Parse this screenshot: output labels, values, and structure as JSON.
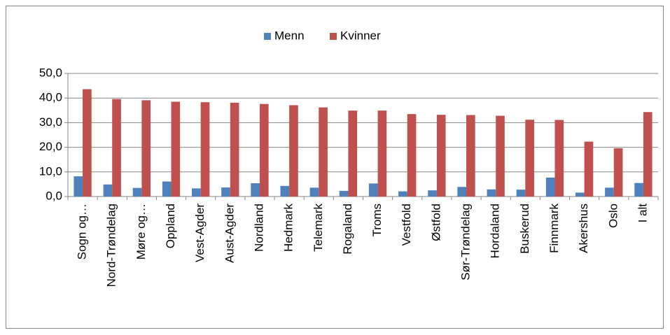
{
  "chart_data": {
    "type": "bar",
    "categories": [
      "Sogn og…",
      "Nord-Trøndelag",
      "Møre og…",
      "Oppland",
      "Vest-Agder",
      "Aust-Agder",
      "Nordland",
      "Hedmark",
      "Telemark",
      "Rogaland",
      "Troms",
      "Vestfold",
      "Østfold",
      "Sør-Trøndelag",
      "Hordaland",
      "Buskerud",
      "Finnmark",
      "Akershus",
      "Oslo",
      "I alt"
    ],
    "series": [
      {
        "name": "Menn",
        "color": "#4f81bd",
        "values": [
          8.2,
          4.9,
          3.5,
          6.1,
          3.3,
          3.7,
          5.4,
          4.3,
          3.6,
          2.3,
          5.3,
          2.1,
          2.5,
          3.9,
          2.9,
          2.8,
          7.7,
          1.6,
          3.6,
          5.5
        ]
      },
      {
        "name": "Kvinner",
        "color": "#c0504d",
        "values": [
          43.6,
          39.6,
          39.1,
          38.5,
          38.3,
          38.1,
          37.6,
          37.1,
          36.2,
          34.9,
          34.9,
          33.5,
          33.2,
          33.1,
          32.8,
          31.2,
          31.1,
          22.3,
          19.6,
          34.3
        ]
      }
    ],
    "ylim": [
      0,
      50
    ],
    "yticks": [
      {
        "value": 0,
        "label": "0,0"
      },
      {
        "value": 10,
        "label": "10,0"
      },
      {
        "value": 20,
        "label": "20,0"
      },
      {
        "value": 30,
        "label": "30,0"
      },
      {
        "value": 40,
        "label": "40,0"
      },
      {
        "value": 50,
        "label": "50,0"
      }
    ],
    "grid": true,
    "legend": "top"
  }
}
